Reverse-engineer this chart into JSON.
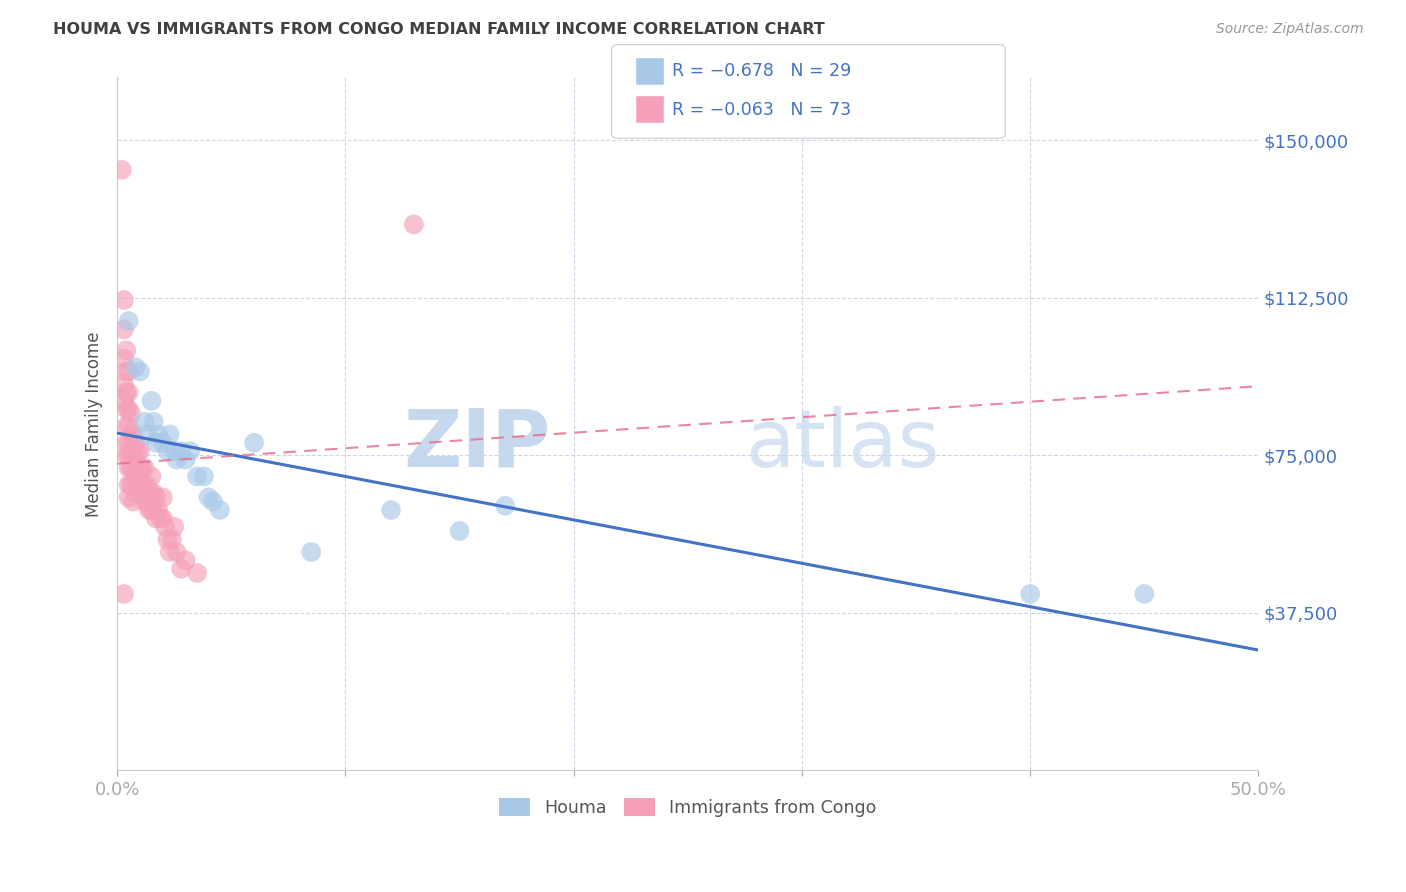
{
  "title": "HOUMA VS IMMIGRANTS FROM CONGO MEDIAN FAMILY INCOME CORRELATION CHART",
  "source": "Source: ZipAtlas.com",
  "ylabel": "Median Family Income",
  "x_min": 0.0,
  "x_max": 0.5,
  "y_min": 0,
  "y_max": 165000,
  "x_ticks": [
    0.0,
    0.1,
    0.2,
    0.3,
    0.4,
    0.5
  ],
  "x_tick_labels": [
    "0.0%",
    "",
    "",
    "",
    "",
    "50.0%"
  ],
  "y_ticks": [
    37500,
    75000,
    112500,
    150000
  ],
  "y_tick_labels": [
    "$37,500",
    "$75,000",
    "$112,500",
    "$150,000"
  ],
  "legend_r_houma": "R = −0.678",
  "legend_n_houma": "N = 29",
  "legend_r_congo": "R = −0.063",
  "legend_n_congo": "N = 73",
  "houma_color": "#a8c8e8",
  "congo_color": "#f4a0b8",
  "houma_line_color": "#4472c4",
  "congo_line_color": "#e87090",
  "background_color": "#ffffff",
  "grid_color": "#d0d8e8",
  "title_color": "#404040",
  "axis_label_color": "#555555",
  "tick_label_color": "#4472c4",
  "houma_points_x": [
    0.005,
    0.008,
    0.01,
    0.012,
    0.013,
    0.015,
    0.016,
    0.017,
    0.018,
    0.02,
    0.022,
    0.023,
    0.025,
    0.026,
    0.028,
    0.03,
    0.032,
    0.035,
    0.038,
    0.04,
    0.042,
    0.045,
    0.06,
    0.085,
    0.12,
    0.15,
    0.17,
    0.4,
    0.45
  ],
  "houma_points_y": [
    107000,
    96000,
    95000,
    83000,
    80000,
    88000,
    83000,
    78000,
    80000,
    78000,
    76000,
    80000,
    76000,
    74000,
    76000,
    74000,
    76000,
    70000,
    70000,
    65000,
    64000,
    62000,
    78000,
    52000,
    62000,
    57000,
    63000,
    42000,
    42000
  ],
  "congo_points_x": [
    0.002,
    0.003,
    0.003,
    0.003,
    0.003,
    0.003,
    0.004,
    0.004,
    0.004,
    0.004,
    0.004,
    0.004,
    0.004,
    0.005,
    0.005,
    0.005,
    0.005,
    0.005,
    0.005,
    0.005,
    0.005,
    0.005,
    0.006,
    0.006,
    0.006,
    0.006,
    0.006,
    0.007,
    0.007,
    0.007,
    0.007,
    0.007,
    0.008,
    0.008,
    0.008,
    0.008,
    0.009,
    0.009,
    0.009,
    0.01,
    0.01,
    0.01,
    0.011,
    0.011,
    0.012,
    0.012,
    0.012,
    0.013,
    0.013,
    0.014,
    0.014,
    0.015,
    0.015,
    0.015,
    0.016,
    0.016,
    0.017,
    0.017,
    0.018,
    0.019,
    0.02,
    0.02,
    0.021,
    0.022,
    0.023,
    0.024,
    0.025,
    0.026,
    0.028,
    0.03,
    0.035,
    0.13,
    0.003
  ],
  "congo_points_y": [
    143000,
    112000,
    105000,
    98000,
    92000,
    88000,
    100000,
    95000,
    90000,
    86000,
    82000,
    78000,
    75000,
    95000,
    90000,
    86000,
    82000,
    78000,
    75000,
    72000,
    68000,
    65000,
    85000,
    80000,
    76000,
    72000,
    68000,
    80000,
    76000,
    72000,
    68000,
    64000,
    78000,
    74000,
    70000,
    66000,
    76000,
    72000,
    68000,
    76000,
    72000,
    68000,
    72000,
    68000,
    72000,
    68000,
    64000,
    68000,
    64000,
    65000,
    62000,
    70000,
    66000,
    62000,
    66000,
    62000,
    65000,
    60000,
    62000,
    60000,
    65000,
    60000,
    58000,
    55000,
    52000,
    55000,
    58000,
    52000,
    48000,
    50000,
    47000,
    130000,
    42000
  ]
}
